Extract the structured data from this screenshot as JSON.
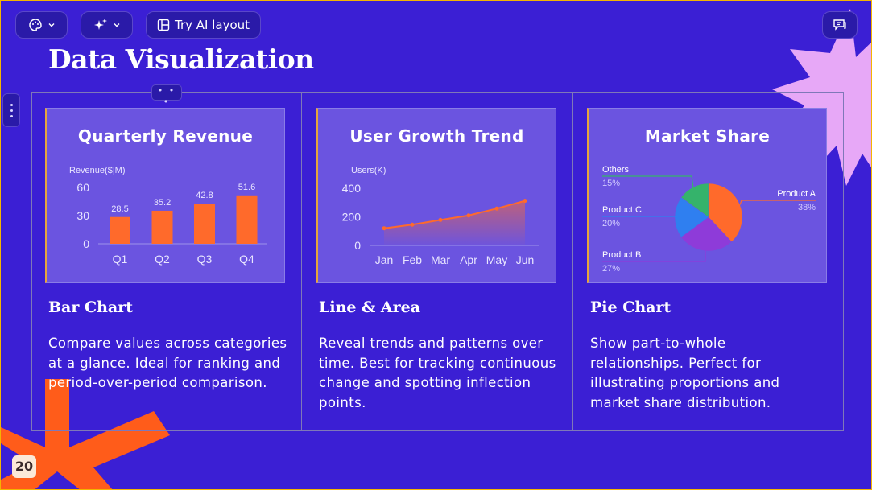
{
  "toolbar": {
    "theme_button": {
      "icon": "palette-icon",
      "caret": "chevron-down-icon"
    },
    "ai_button": {
      "icon": "sparkle-icon",
      "caret": "chevron-down-icon"
    },
    "try_ai_layout_label": "Try AI layout",
    "comments_button": {
      "icon": "comment-icon"
    }
  },
  "slide": {
    "title": "Data Visualization",
    "page_number": "20",
    "colors": {
      "background": "#3b1fd4",
      "card": "#6b54e0",
      "accent_orange": "#ff6a2b",
      "accent_pink": "#e7a8f7"
    }
  },
  "columns": [
    {
      "heading": "Bar Chart",
      "description": "Compare values across categories at a glance. Ideal for ranking and period-over-period comparison."
    },
    {
      "heading": "Line & Area",
      "description": "Reveal trends and patterns over time. Best for tracking continuous change and spotting inflection points."
    },
    {
      "heading": "Pie Chart",
      "description": "Show part-to-whole relationships. Perfect for illustrating proportions and market share distribution."
    }
  ],
  "chart_data": [
    {
      "type": "bar",
      "title": "Quarterly Revenue",
      "ylabel": "Revenue($|M)",
      "categories": [
        "Q1",
        "Q2",
        "Q3",
        "Q4"
      ],
      "values": [
        28.5,
        35.2,
        42.8,
        51.6
      ],
      "yticks": [
        0,
        30,
        60
      ],
      "ylim": [
        0,
        60
      ],
      "data_labels": true,
      "grid": false,
      "color": "#ff6a2b"
    },
    {
      "type": "area",
      "title": "User Growth Trend",
      "ylabel": "Users(K)",
      "categories": [
        "Jan",
        "Feb",
        "Mar",
        "Apr",
        "May",
        "Jun"
      ],
      "values": [
        120,
        145,
        178,
        210,
        258,
        312
      ],
      "yticks": [
        0,
        200,
        400
      ],
      "ylim": [
        0,
        400
      ],
      "grid": false,
      "color": "#ff6a2b"
    },
    {
      "type": "pie",
      "title": "Market Share",
      "slices": [
        {
          "label": "Product A",
          "percent_label": "38%",
          "value": 38,
          "color": "#ff6a2b"
        },
        {
          "label": "Product B",
          "percent_label": "27%",
          "value": 27,
          "color": "#8e3bd9"
        },
        {
          "label": "Product C",
          "percent_label": "20%",
          "value": 20,
          "color": "#2f7ff0"
        },
        {
          "label": "Others",
          "percent_label": "15%",
          "value": 15,
          "color": "#35b36b"
        }
      ]
    }
  ]
}
